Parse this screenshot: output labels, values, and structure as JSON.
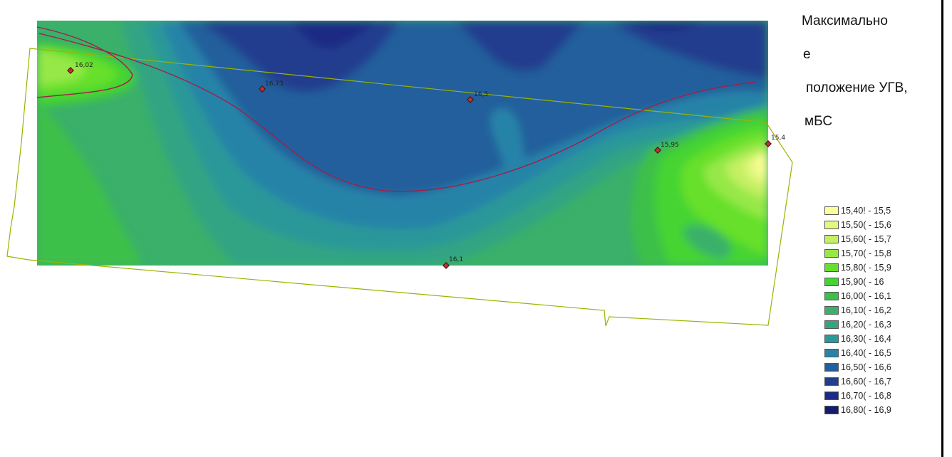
{
  "title": {
    "line1": "Максимально",
    "line2": "е",
    "line3": "положение УГВ,",
    "line4": "мБС"
  },
  "wells": [
    {
      "label": "16,02"
    },
    {
      "label": "16,73"
    },
    {
      "label": "16,5"
    },
    {
      "label": "15,95"
    },
    {
      "label": "15,4"
    },
    {
      "label": "16,1"
    }
  ],
  "legend": [
    {
      "label": "15,40! - 15,5",
      "color": "#ffff99"
    },
    {
      "label": "15,50( - 15,6",
      "color": "#e4f880"
    },
    {
      "label": "15,60( - 15,7",
      "color": "#c4f064"
    },
    {
      "label": "15,70( - 15,8",
      "color": "#96e846"
    },
    {
      "label": "15,80( - 15,9",
      "color": "#66e02c"
    },
    {
      "label": "15,90( - 16",
      "color": "#45d433"
    },
    {
      "label": "16,00( - 16,1",
      "color": "#3cc04a"
    },
    {
      "label": "16,10( - 16,2",
      "color": "#3ab06a"
    },
    {
      "label": "16,20( - 16,3",
      "color": "#33a483"
    },
    {
      "label": "16,30( - 16,4",
      "color": "#2b9899"
    },
    {
      "label": "16,40( - 16,5",
      "color": "#2783a8"
    },
    {
      "label": "16,50( - 16,6",
      "color": "#245f9c"
    },
    {
      "label": "16,60( - 16,7",
      "color": "#223e8e"
    },
    {
      "label": "16,70( - 16,8",
      "color": "#1e2a84"
    },
    {
      "label": "16,80( - 16,9",
      "color": "#151a70"
    }
  ]
}
